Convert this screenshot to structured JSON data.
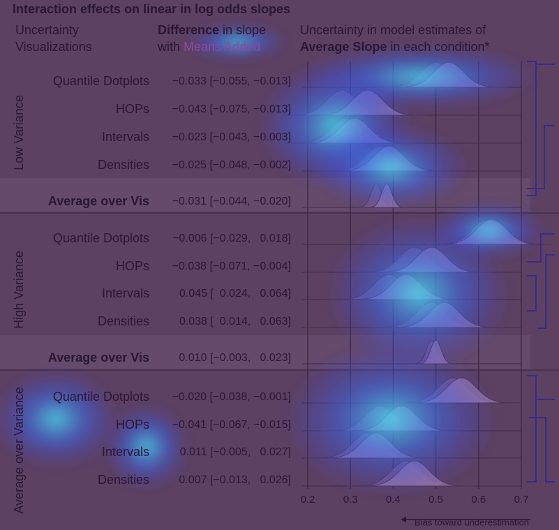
{
  "title": "Interaction effects on linear in log odds slopes",
  "columns": [
    {
      "line1": "Uncertainty",
      "line2": "Visualizations"
    },
    {
      "bold": "Difference",
      "rest1": " in slope",
      "rest2": "with ",
      "colored": "Means Added"
    },
    {
      "line1": "Uncertainty in model estimates of",
      "bold": "Average Slope",
      "rest": " in each condition*"
    }
  ],
  "xticks": [
    0.2,
    0.3,
    0.4,
    0.5,
    0.6,
    0.7
  ],
  "xlim": [
    0.2,
    0.7
  ],
  "axis_note": "Bias toward underestimation",
  "groups": [
    {
      "name": "Low Variance",
      "rows": [
        {
          "label": "Quantile Dotplots",
          "estimate": "−0.033 [−0.055, −0.013]",
          "centers": [
            0.5,
            0.53
          ]
        },
        {
          "label": "HOPs",
          "estimate": "−0.043 [−0.075, −0.013]",
          "centers": [
            0.28,
            0.34
          ]
        },
        {
          "label": "Intervals",
          "estimate": "−0.023 [−0.043, −0.003]",
          "centers": [
            0.29,
            0.31
          ]
        },
        {
          "label": "Densities",
          "estimate": "−0.025 [−0.048, −0.002]",
          "centers": [
            0.37,
            0.39
          ]
        },
        {
          "label": "Average over Vis",
          "estimate": "−0.031 [−0.044, −0.020]",
          "centers": [
            0.36,
            0.385
          ],
          "average": true
        }
      ]
    },
    {
      "name": "High Variance",
      "rows": [
        {
          "label": "Quantile Dotplots",
          "estimate": "−0.006 [−0.029,   0.018]",
          "centers": [
            0.62,
            0.63
          ]
        },
        {
          "label": "HOPs",
          "estimate": "−0.038 [−0.071, −0.004]",
          "centers": [
            0.45,
            0.49
          ]
        },
        {
          "label": "Intervals",
          "estimate": "0.045 [  0.024,   0.064]",
          "centers": [
            0.39,
            0.43
          ]
        },
        {
          "label": "Densities",
          "estimate": "0.038 [  0.014,   0.063]",
          "centers": [
            0.49,
            0.52
          ]
        },
        {
          "label": "Average over Vis",
          "estimate": "0.010 [−0.003,   0.023]",
          "centers": [
            0.49,
            0.5
          ],
          "average": true
        }
      ]
    },
    {
      "name": "Average over Variance",
      "rows": [
        {
          "label": "Quantile Dotplots",
          "estimate": "−0.020 [−0.038, −0.001]",
          "centers": [
            0.54,
            0.56
          ]
        },
        {
          "label": "HOPs",
          "estimate": "−0.041 [−0.067, −0.015]",
          "centers": [
            0.37,
            0.42
          ]
        },
        {
          "label": "Intervals",
          "estimate": "0.011 [−0.005,   0.027]",
          "centers": [
            0.34,
            0.36
          ]
        },
        {
          "label": "Densities",
          "estimate": "0.007 [−0.013,   0.026]",
          "centers": [
            0.43,
            0.45
          ]
        }
      ]
    }
  ]
}
